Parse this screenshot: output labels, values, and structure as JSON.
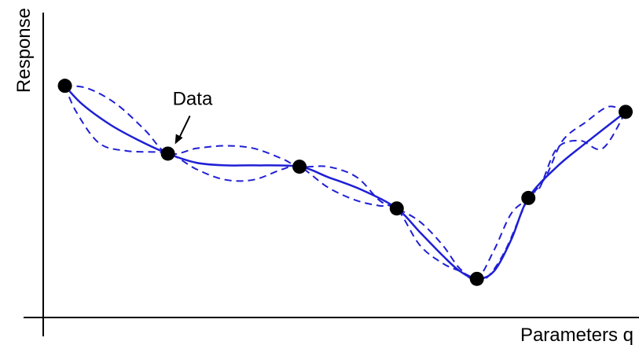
{
  "chart_data": {
    "type": "line",
    "xlabel": "Parameters q",
    "ylabel": "Response",
    "annotation": "Data",
    "colors": {
      "curve": "#1f1fd6",
      "points": "#000000",
      "axis": "#000000"
    },
    "xlim": [
      0,
      100
    ],
    "ylim": [
      0,
      100
    ],
    "grid": false,
    "legend": "none",
    "points": {
      "x": [
        2,
        20,
        43,
        60,
        74,
        83,
        100
      ],
      "y": [
        87,
        61,
        56,
        40,
        13,
        44,
        77
      ]
    },
    "series": [
      {
        "style": "solid",
        "x": [
          2,
          5,
          10,
          15,
          20,
          25,
          30,
          35,
          43,
          48,
          54,
          60,
          64,
          68,
          71,
          74,
          77,
          80,
          83,
          88,
          93,
          100
        ],
        "y": [
          87,
          80,
          72,
          66,
          61,
          57.5,
          56.5,
          56.5,
          56,
          52,
          47,
          40,
          31,
          22,
          16,
          13,
          16,
          28,
          44,
          56,
          65,
          77
        ]
      },
      {
        "style": "dashed",
        "x": [
          2,
          6,
          11,
          16,
          20,
          25,
          30,
          35,
          40,
          43,
          48,
          53,
          57,
          60,
          64,
          68,
          71,
          74,
          77,
          80,
          83,
          86,
          89,
          93,
          97,
          100
        ],
        "y": [
          87,
          86,
          80,
          70,
          61,
          63,
          64,
          63,
          59,
          56,
          56,
          52,
          43,
          40,
          35,
          26,
          17,
          13,
          24,
          38,
          44,
          52,
          66,
          73,
          79,
          77
        ]
      },
      {
        "style": "dashed",
        "x": [
          2,
          4,
          8,
          13,
          20,
          25,
          30,
          35,
          40,
          43,
          48,
          53,
          57,
          60,
          64,
          68,
          71,
          74,
          76,
          79,
          83,
          85,
          88,
          92,
          96,
          100
        ],
        "y": [
          87,
          77,
          65,
          62,
          61,
          55,
          51,
          51,
          55,
          56,
          48,
          43,
          41,
          40,
          26,
          19,
          16,
          13,
          14,
          24,
          44,
          48,
          63,
          66,
          63,
          77
        ]
      }
    ]
  }
}
